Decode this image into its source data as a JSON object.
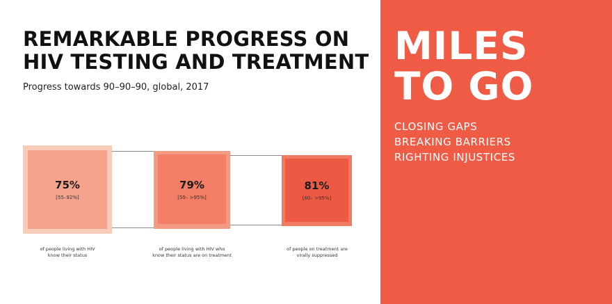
{
  "title_lines": [
    "REMARKABLE PROGRESS ON",
    "HIV TESTING AND TREATMENT"
  ],
  "subtitle": "Progress towards 90–90–90, global, 2017",
  "metrics": [
    {
      "value": "75%",
      "range": "[55–92%]",
      "caption_lines": [
        "of people living with HIV",
        "know their status"
      ],
      "colors": {
        "outer": "#f8cbbb",
        "inner": "#f6a38d"
      }
    },
    {
      "value": "79%",
      "range": "[59– >95%]",
      "caption_lines": [
        "of people living with HIV who",
        "know their status are on treatment"
      ],
      "colors": {
        "outer": "#f39a82",
        "inner": "#f27e66"
      }
    },
    {
      "value": "81%",
      "range": "[60– >95%]",
      "caption_lines": [
        "of people on treatment are",
        "virally suppressed"
      ],
      "colors": {
        "outer": "#f07a62",
        "inner": "#ec5a44"
      }
    }
  ],
  "panel": {
    "headline_lines": [
      "MILES",
      "TO GO"
    ],
    "tags": [
      "CLOSING GAPS",
      "BREAKING BARRIERS",
      "RIGHTING INJUSTICES"
    ],
    "background": "#ef5b45"
  }
}
